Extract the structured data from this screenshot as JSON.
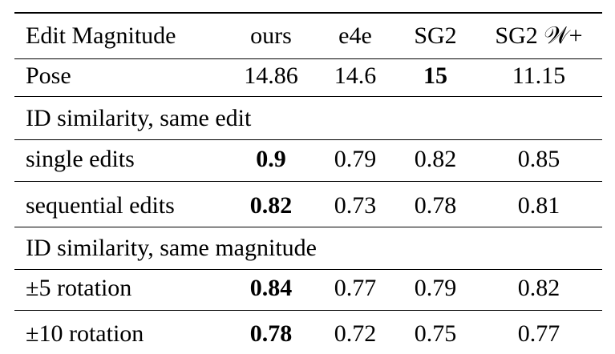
{
  "table": {
    "header": [
      "Edit Magnitude",
      "ours",
      "e4e",
      "SG2",
      "SG2 𝒲+"
    ],
    "pose_row": {
      "label": "Pose",
      "values": [
        "14.86",
        "14.6",
        "15",
        "11.15"
      ],
      "bold_index": 2
    },
    "section_same_edit": "ID similarity, same edit",
    "same_edit_rows": [
      {
        "label": "single edits",
        "values": [
          "0.9",
          "0.79",
          "0.82",
          "0.85"
        ],
        "bold_index": 0
      },
      {
        "label": "sequential edits",
        "values": [
          "0.82",
          "0.73",
          "0.78",
          "0.81"
        ],
        "bold_index": 0
      }
    ],
    "section_same_magnitude": "ID similarity, same magnitude",
    "same_magnitude_rows": [
      {
        "label": "±5 rotation",
        "values": [
          "0.84",
          "0.77",
          "0.79",
          "0.82"
        ],
        "bold_index": 0
      },
      {
        "label": "±10 rotation",
        "values": [
          "0.78",
          "0.72",
          "0.75",
          "0.77"
        ],
        "bold_index": 0
      }
    ]
  }
}
